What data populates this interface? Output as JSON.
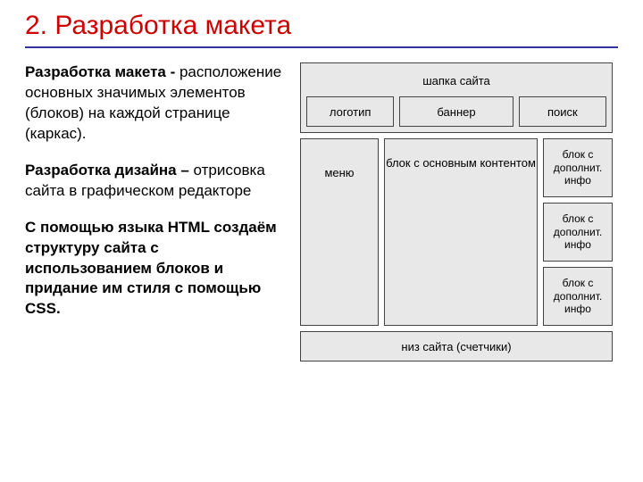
{
  "title": "2. Разработка макета",
  "left": {
    "p1_bold": "Разработка макета -",
    "p1_rest": " расположение основных значимых элементов (блоков) на каждой странице (каркас).",
    "p2_bold": "Разработка дизайна –",
    "p2_rest": " отрисовка сайта в графическом редакторе",
    "p3": "С помощью языка HTML создаём структуру сайта с использованием блоков и придание им стиля с помощью CSS."
  },
  "wire": {
    "header_title": "шапка сайта",
    "logo": "логотип",
    "banner": "баннер",
    "search": "поиск",
    "menu": "меню",
    "content": "блок с основным контентом",
    "side1": "блок с дополнит. инфо",
    "side2": "блок с дополнит. инфо",
    "side3": "блок с дополнит. инфо",
    "footer": "низ сайта (счетчики)"
  },
  "colors": {
    "title": "#cc0000",
    "rule": "#333399",
    "box_bg": "#e8e8e8",
    "box_border": "#444444"
  }
}
